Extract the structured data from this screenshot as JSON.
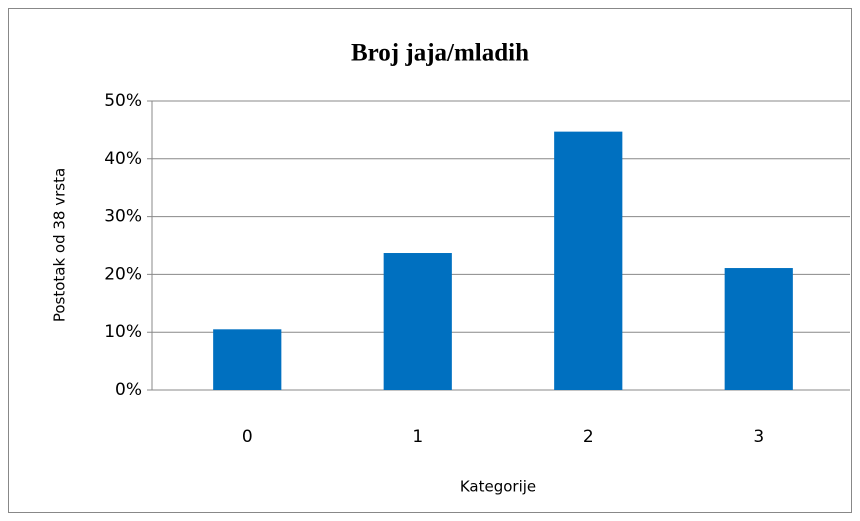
{
  "chart_data": {
    "type": "bar",
    "title": "Broj jaja/mladih",
    "x_label": "Kategorije",
    "y_label": "Postotak od 38 vrsta",
    "categories": [
      "0",
      "1",
      "2",
      "3"
    ],
    "values": [
      10.5,
      23.7,
      44.7,
      21.1
    ],
    "color": "#0070c0",
    "ylim": [
      0,
      50
    ],
    "yticks": [
      {
        "value": 0,
        "label": "0%"
      },
      {
        "value": 10,
        "label": "10%"
      },
      {
        "value": 20,
        "label": "20%"
      },
      {
        "value": 30,
        "label": "30%"
      },
      {
        "value": 40,
        "label": "40%"
      },
      {
        "value": 50,
        "label": "50%"
      }
    ],
    "grid": true
  }
}
